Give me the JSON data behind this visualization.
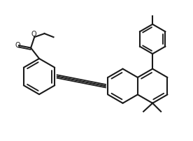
{
  "background": "#ffffff",
  "line_color": "#1a1a1a",
  "line_width": 1.5,
  "figsize": [
    2.76,
    2.02
  ],
  "dpi": 100
}
